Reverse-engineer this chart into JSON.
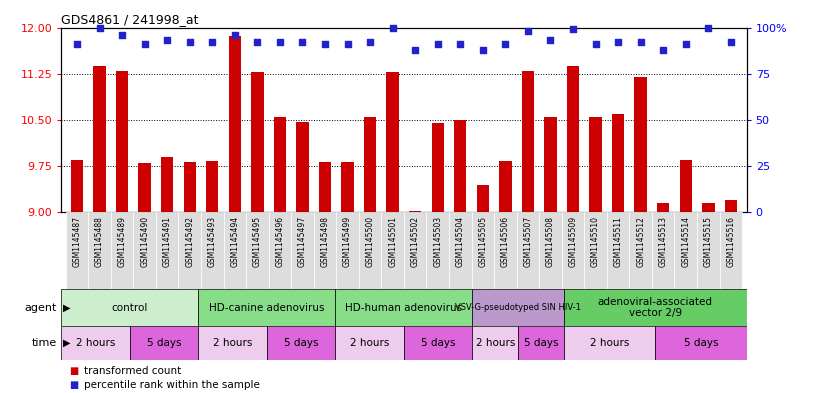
{
  "title": "GDS4861 / 241998_at",
  "bar_color": "#cc0000",
  "dot_color": "#2222cc",
  "ylim_left": [
    9,
    12
  ],
  "ylim_right": [
    0,
    100
  ],
  "yticks_left": [
    9,
    9.75,
    10.5,
    11.25,
    12
  ],
  "yticks_right": [
    0,
    25,
    50,
    75,
    100
  ],
  "samples": [
    "GSM1145487",
    "GSM1145488",
    "GSM1145489",
    "GSM1145490",
    "GSM1145491",
    "GSM1145492",
    "GSM1145493",
    "GSM1145494",
    "GSM1145495",
    "GSM1145496",
    "GSM1145497",
    "GSM1145498",
    "GSM1145499",
    "GSM1145500",
    "GSM1145501",
    "GSM1145502",
    "GSM1145503",
    "GSM1145504",
    "GSM1145505",
    "GSM1145506",
    "GSM1145507",
    "GSM1145508",
    "GSM1145509",
    "GSM1145510",
    "GSM1145511",
    "GSM1145512",
    "GSM1145513",
    "GSM1145514",
    "GSM1145515",
    "GSM1145516"
  ],
  "bar_values": [
    9.85,
    11.37,
    11.3,
    9.8,
    9.9,
    9.82,
    9.83,
    11.87,
    11.27,
    10.55,
    10.47,
    9.82,
    9.82,
    10.54,
    11.27,
    9.02,
    10.45,
    10.5,
    9.45,
    9.83,
    11.3,
    10.55,
    11.37,
    10.55,
    10.6,
    11.2,
    9.15,
    9.85,
    9.15,
    9.2
  ],
  "dot_values": [
    91,
    100,
    96,
    91,
    93,
    92,
    92,
    96,
    92,
    92,
    92,
    91,
    91,
    92,
    100,
    88,
    91,
    91,
    88,
    91,
    98,
    93,
    99,
    91,
    92,
    92,
    88,
    91,
    100,
    92
  ],
  "agent_groups": [
    {
      "label": "control",
      "start": 0,
      "end": 6,
      "color": "#cceecc"
    },
    {
      "label": "HD-canine adenovirus",
      "start": 6,
      "end": 12,
      "color": "#88dd88"
    },
    {
      "label": "HD-human adenovirus",
      "start": 12,
      "end": 18,
      "color": "#88dd88"
    },
    {
      "label": "VSV-G-pseudotyped SIN HIV-1",
      "start": 18,
      "end": 22,
      "color": "#bb99cc",
      "fontsize": 6
    },
    {
      "label": "adenoviral-associated\nvector 2/9",
      "start": 22,
      "end": 30,
      "color": "#66cc66"
    }
  ],
  "time_groups": [
    {
      "label": "2 hours",
      "start": 0,
      "end": 3,
      "color": "#eeccee"
    },
    {
      "label": "5 days",
      "start": 3,
      "end": 6,
      "color": "#dd66dd"
    },
    {
      "label": "2 hours",
      "start": 6,
      "end": 9,
      "color": "#eeccee"
    },
    {
      "label": "5 days",
      "start": 9,
      "end": 12,
      "color": "#dd66dd"
    },
    {
      "label": "2 hours",
      "start": 12,
      "end": 15,
      "color": "#eeccee"
    },
    {
      "label": "5 days",
      "start": 15,
      "end": 18,
      "color": "#dd66dd"
    },
    {
      "label": "2 hours",
      "start": 18,
      "end": 20,
      "color": "#eeccee"
    },
    {
      "label": "5 days",
      "start": 20,
      "end": 22,
      "color": "#dd66dd"
    },
    {
      "label": "2 hours",
      "start": 22,
      "end": 26,
      "color": "#eeccee"
    },
    {
      "label": "5 days",
      "start": 26,
      "end": 30,
      "color": "#dd66dd"
    }
  ],
  "legend": [
    {
      "label": "transformed count",
      "color": "#cc0000"
    },
    {
      "label": "percentile rank within the sample",
      "color": "#2222cc"
    }
  ],
  "sample_band_color": "#dddddd",
  "agent_arrow_color": "#555555",
  "time_arrow_color": "#555555"
}
